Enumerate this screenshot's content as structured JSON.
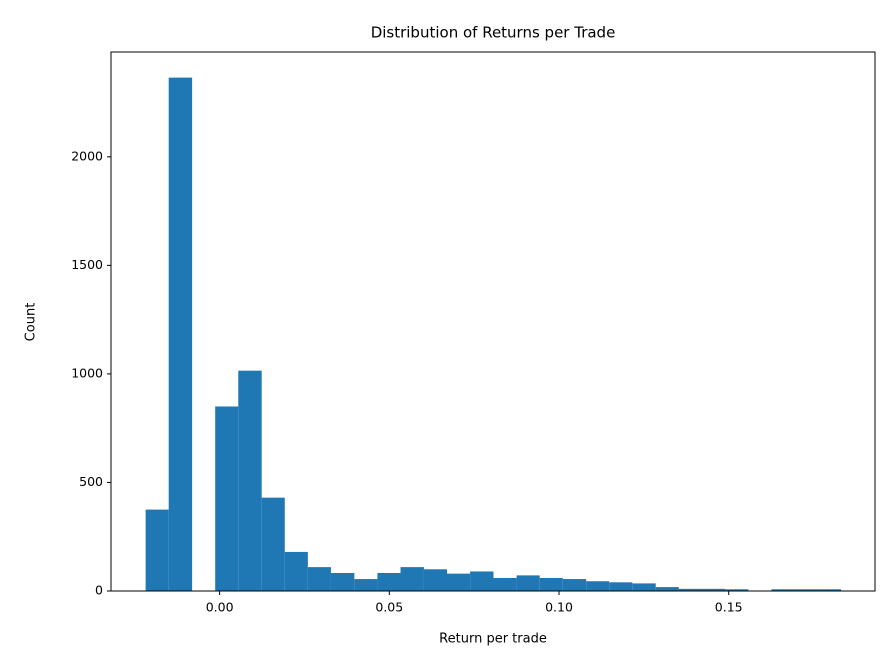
{
  "chart_data": {
    "type": "histogram",
    "title": "Distribution of Returns per Trade",
    "x_label": "Return per trade",
    "y_label": "Count",
    "color": "#1f77b4",
    "bins": [
      -0.0218,
      -0.015,
      -0.0081,
      -0.0013,
      0.0055,
      0.0124,
      0.0192,
      0.026,
      0.0328,
      0.0397,
      0.0465,
      0.0533,
      0.0602,
      0.067,
      0.0738,
      0.0807,
      0.0875,
      0.0943,
      0.1011,
      0.108,
      0.1148,
      0.1216,
      0.1285,
      0.1353,
      0.1421,
      0.149,
      0.1558,
      0.1626,
      0.1694,
      0.1763,
      0.1831
    ],
    "values": [
      375,
      2365,
      0,
      850,
      1015,
      430,
      180,
      110,
      83,
      55,
      83,
      110,
      100,
      80,
      90,
      60,
      72,
      60,
      55,
      45,
      40,
      35,
      18,
      10,
      10,
      8,
      2,
      8,
      8,
      8
    ],
    "xlim": [
      -0.032,
      0.1931
    ],
    "ylim": [
      0,
      2483
    ],
    "xticks": [
      {
        "value": 0,
        "label": "0.00"
      },
      {
        "value": 0.05,
        "label": "0.05"
      },
      {
        "value": 0.1,
        "label": "0.10"
      },
      {
        "value": 0.15,
        "label": "0.15"
      }
    ],
    "yticks": [
      0,
      500,
      1000,
      1500,
      2000
    ]
  }
}
